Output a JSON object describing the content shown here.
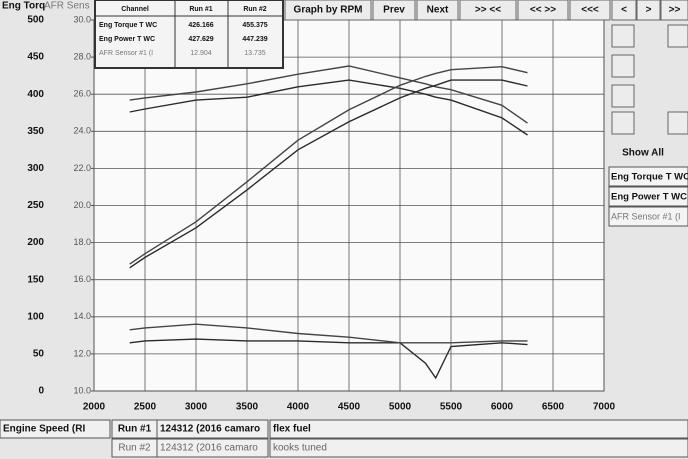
{
  "chart_data": {
    "type": "line",
    "ylabel": "Eng Torq",
    "y2label": "AFR Sens",
    "x": [
      2350,
      2500,
      3000,
      3500,
      4000,
      4500,
      5000,
      5250,
      5350,
      5500,
      6000,
      6250
    ],
    "xlim": [
      2000,
      7000
    ],
    "xticks": [
      2000,
      2500,
      3000,
      3500,
      4000,
      4500,
      5000,
      5500,
      6000,
      6500,
      7000
    ],
    "ylim": [
      0,
      500
    ],
    "yticks": [
      0,
      50,
      100,
      150,
      200,
      250,
      300,
      350,
      400,
      450,
      500
    ],
    "y2lim": [
      10,
      30
    ],
    "y2ticks": [
      {
        "value": 10,
        "label": "10.0"
      },
      {
        "value": 12,
        "label": "12.0"
      },
      {
        "value": 14,
        "label": "14.0"
      },
      {
        "value": 16,
        "label": "16.0"
      },
      {
        "value": 18,
        "label": "18.0"
      },
      {
        "value": 20,
        "label": "20.0"
      },
      {
        "value": 22,
        "label": "22.0"
      },
      {
        "value": 24,
        "label": "24.0"
      },
      {
        "value": 26,
        "label": "26.0"
      },
      {
        "value": 28,
        "label": "28.0"
      },
      {
        "value": 30,
        "label": "30.0"
      }
    ],
    "grid": true,
    "series": [
      {
        "color": "#2a2a2a",
        "values": [
          376,
          380,
          392,
          396,
          410,
          419,
          408,
          400,
          396,
          392,
          368,
          345
        ]
      },
      {
        "color": "#444444",
        "values": [
          392,
          395,
          403,
          414,
          427,
          438,
          422,
          414,
          410,
          406,
          385,
          361
        ]
      },
      {
        "color": "#2a2a2a",
        "values": [
          166,
          180,
          220,
          271,
          325,
          363,
          395,
          408,
          412,
          419,
          419,
          411
        ]
      },
      {
        "color": "#444444",
        "values": [
          171,
          185,
          228,
          282,
          338,
          379,
          412,
          424,
          428,
          433,
          437,
          429
        ]
      },
      {
        "color": "#2a2a2a",
        "axis": "y2",
        "values": [
          12.6,
          12.7,
          12.8,
          12.7,
          12.7,
          12.6,
          12.6,
          11.5,
          10.7,
          12.4,
          12.6,
          12.5
        ]
      },
      {
        "color": "#444444",
        "axis": "y2",
        "values": [
          13.3,
          13.4,
          13.6,
          13.4,
          13.1,
          12.9,
          12.6,
          12.6,
          12.6,
          12.6,
          12.7,
          12.7
        ]
      }
    ]
  },
  "ui": {
    "buttons": [
      "Graph by RPM",
      "Prev",
      "Next",
      ">> <<",
      "<< >>",
      "<<<",
      "<",
      ">",
      ">>"
    ],
    "cursor_table": {
      "header": [
        "Channel",
        "Run #1",
        "Run #2"
      ],
      "rows": [
        [
          "Eng Torque T WC",
          "426.166",
          "455.375"
        ],
        [
          "Eng Power T WC",
          "427.629",
          "447.239"
        ],
        [
          "AFR Sensor #1 (I",
          "12.904",
          "13.735"
        ]
      ]
    },
    "side_panel": {
      "show_all": "Show All",
      "channels": [
        "Eng Torque T WC",
        "Eng Power T WC",
        "AFR Sensor #1 (I"
      ]
    },
    "footer": {
      "x_channel": "Engine Speed (RI",
      "runs": [
        {
          "label": "Run #1",
          "vehicle": "124312 (2016 camaro",
          "note": "flex fuel"
        },
        {
          "label": "Run #2",
          "vehicle": "124312 (2016 camaro",
          "note": "kooks tuned"
        }
      ]
    }
  }
}
